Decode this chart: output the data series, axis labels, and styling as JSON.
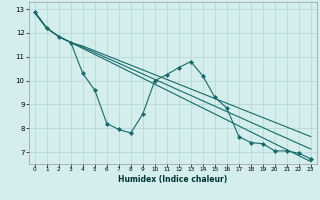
{
  "xlabel": "Humidex (Indice chaleur)",
  "bg_color": "#d4eeee",
  "grid_color": "#b8d8d8",
  "line_color": "#196868",
  "xlim": [
    -0.5,
    23.5
  ],
  "ylim": [
    6.5,
    13.3
  ],
  "yticks": [
    7,
    8,
    9,
    10,
    11,
    12,
    13
  ],
  "xticks": [
    0,
    1,
    2,
    3,
    4,
    5,
    6,
    7,
    8,
    9,
    10,
    11,
    12,
    13,
    14,
    15,
    16,
    17,
    18,
    19,
    20,
    21,
    22,
    23
  ],
  "line1_x": [
    0,
    1,
    2,
    3,
    4,
    5,
    6,
    7,
    8,
    9,
    10,
    11,
    12,
    13,
    14,
    15,
    16,
    17,
    18,
    19,
    20,
    21,
    22,
    23
  ],
  "line1_y": [
    12.9,
    12.2,
    11.85,
    11.6,
    10.3,
    9.6,
    8.2,
    7.95,
    7.8,
    8.6,
    10.0,
    10.25,
    10.55,
    10.8,
    10.2,
    9.3,
    8.85,
    7.65,
    7.4,
    7.35,
    7.05,
    7.05,
    6.95,
    6.72
  ],
  "line2_x": [
    0,
    1,
    2,
    3,
    4,
    5,
    6,
    7,
    8,
    9,
    10,
    11,
    12,
    13,
    14,
    15,
    16,
    17,
    18,
    19,
    20,
    21,
    22,
    23
  ],
  "line2_y": [
    12.85,
    12.2,
    11.85,
    11.6,
    11.45,
    11.25,
    11.05,
    10.85,
    10.65,
    10.45,
    10.25,
    10.05,
    9.85,
    9.65,
    9.45,
    9.25,
    9.05,
    8.85,
    8.65,
    8.45,
    8.25,
    8.05,
    7.85,
    7.65
  ],
  "line3_x": [
    0,
    1,
    2,
    3,
    4,
    5,
    6,
    7,
    8,
    9,
    10,
    11,
    12,
    13,
    14,
    15,
    16,
    17,
    18,
    19,
    20,
    21,
    22,
    23
  ],
  "line3_y": [
    12.85,
    12.2,
    11.85,
    11.6,
    11.4,
    11.18,
    10.95,
    10.73,
    10.5,
    10.28,
    10.05,
    9.83,
    9.6,
    9.38,
    9.15,
    8.93,
    8.7,
    8.48,
    8.25,
    8.03,
    7.8,
    7.58,
    7.35,
    7.13
  ],
  "line4_x": [
    0,
    1,
    2,
    3,
    4,
    5,
    6,
    7,
    8,
    9,
    10,
    11,
    12,
    13,
    14,
    15,
    16,
    17,
    18,
    19,
    20,
    21,
    22,
    23
  ],
  "line4_y": [
    12.85,
    12.2,
    11.85,
    11.6,
    11.35,
    11.1,
    10.85,
    10.6,
    10.35,
    10.1,
    9.85,
    9.6,
    9.35,
    9.1,
    8.85,
    8.6,
    8.35,
    8.1,
    7.85,
    7.6,
    7.35,
    7.1,
    6.85,
    6.6
  ]
}
